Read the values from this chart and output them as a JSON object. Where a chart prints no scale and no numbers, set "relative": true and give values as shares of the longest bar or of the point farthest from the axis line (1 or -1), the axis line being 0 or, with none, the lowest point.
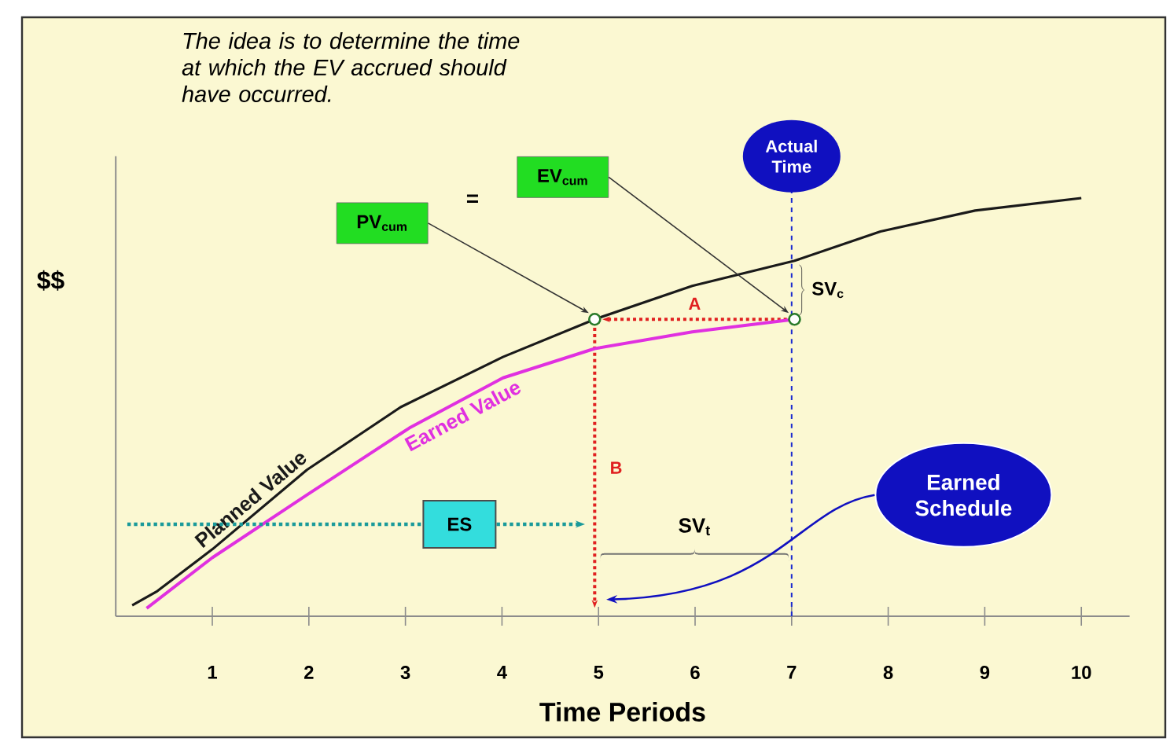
{
  "chart_data": {
    "type": "line",
    "relative": true,
    "xlabel": "Time Periods",
    "ylabel": "$$",
    "xlim": [
      0,
      10.5
    ],
    "xticks": [
      1,
      2,
      3,
      4,
      5,
      6,
      7,
      8,
      9,
      10
    ],
    "series": [
      {
        "name": "Planned Value",
        "color": "#1a1a1a",
        "x": [
          0.17,
          0.43,
          1.0,
          1.98,
          2.95,
          4.01,
          4.96,
          5.97,
          7.03,
          7.92,
          8.9,
          10.0
        ],
        "values": [
          0.026,
          0.06,
          0.16,
          0.35,
          0.5,
          0.62,
          0.71,
          0.79,
          0.85,
          0.92,
          0.97,
          1.0
        ]
      },
      {
        "name": "Earned Value",
        "color": "#e030e0",
        "x": [
          0.32,
          1.0,
          1.98,
          3.04,
          4.01,
          4.96,
          5.97,
          7.03
        ],
        "values": [
          0.019,
          0.14,
          0.29,
          0.45,
          0.57,
          0.64,
          0.68,
          0.71
        ]
      }
    ],
    "ref_lines": [
      {
        "axis": "x",
        "value": 7,
        "label": "Actual Time",
        "color": "#1a2ad0",
        "line_style": "dashed"
      }
    ],
    "annotations": [
      "The idea is to determine the time at which the EV accrued should have occurred.",
      "PV$_{cum}$",
      "=",
      "EV$_{cum}$",
      "SV$_{c}$",
      "A",
      "B",
      "ES",
      "SV$_{t}$",
      "Earned Schedule"
    ]
  }
}
